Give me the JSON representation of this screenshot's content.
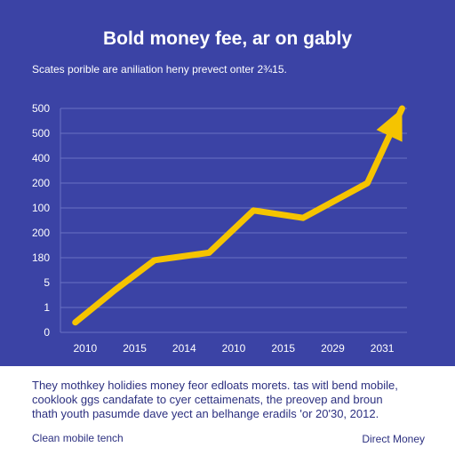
{
  "title": "Bold money fee, ar on gably",
  "subtitle": "Scates porible are aniliation heny prevect onter 2¾15.",
  "caption_lines": [
    "They mothkey holidies money feor edloats morets. tas witl bend mobile,",
    "cooklook ggs candafate to cyer cettaimenats, the preovep and broun",
    "thath youth pasumde dave yect an belhange eradils 'or 20'30, 2012."
  ],
  "footer_left": "Clean mobile tench",
  "footer_right": "Direct Money",
  "colors": {
    "background": "#3b43a5",
    "line": "#f5c400",
    "grid": "#6a72c4",
    "axis_text": "#ffffff"
  },
  "chart_data": {
    "type": "line",
    "title": "Bold money fee, ar on gably",
    "xlabel": "",
    "ylabel": "",
    "x_tick_labels": [
      "2010",
      "2015",
      "2014",
      "2010",
      "2015",
      "2029",
      "2031"
    ],
    "y_tick_labels": [
      "500",
      "500",
      "400",
      "200",
      "100",
      "200",
      "180",
      "5",
      "1",
      "0"
    ],
    "y_tick_positions": [
      9,
      8,
      7,
      6,
      5,
      4,
      3,
      2,
      1,
      0
    ],
    "ylim": [
      0,
      9
    ],
    "xlim": [
      0,
      7
    ],
    "grid": true,
    "legend": "none",
    "series": [
      {
        "x": [
          0.3,
          1.1,
          1.9,
          3.0,
          3.9,
          4.9,
          6.2,
          6.9
        ],
        "y": [
          0.4,
          1.7,
          2.9,
          3.2,
          4.9,
          4.6,
          6.0,
          9.0
        ],
        "arrow_end": true
      }
    ]
  }
}
